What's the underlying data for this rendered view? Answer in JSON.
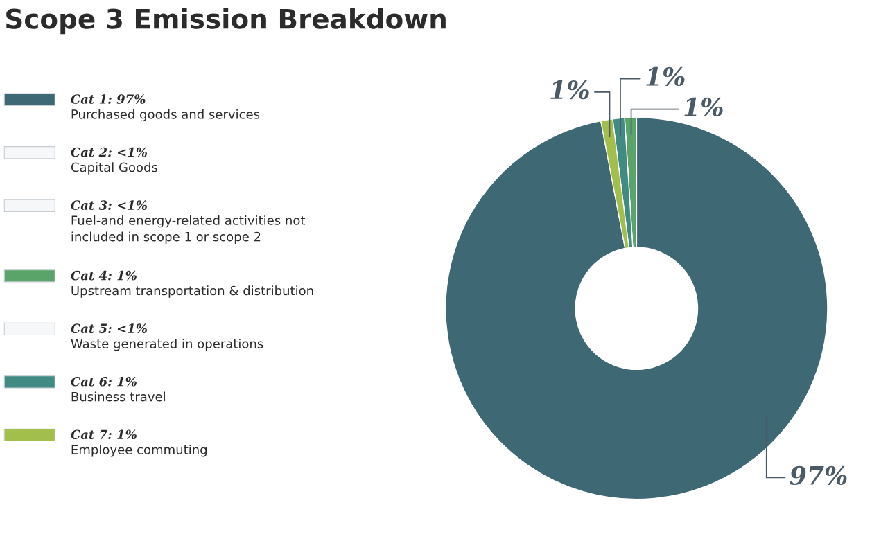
{
  "chart_data": {
    "type": "donut",
    "title": "Scope 3 Emission Breakdown",
    "categories": [
      "Cat 1: 97%\nPurchased goods and services",
      "Cat 2: <1%\nCapital Goods",
      "Cat 3: <1%\nFuel-and energy-related activities not\nincluded in scope 1 or scope 2",
      "Cat 4: 1%\nUpstream transportation & distribution",
      "Cat 5: <1%\nWaste generated in operations",
      "Cat 6: 1%\nBusiness travel",
      "Cat 7: 1%\nEmployee commuting"
    ],
    "values": [
      97,
      0,
      0,
      1,
      0,
      1,
      1
    ],
    "colors": [
      "#3f6875",
      "#f5f7f9",
      "#f5f7f9",
      "#5aa46a",
      "#f5f7f9",
      "#428a84",
      "#a2bf4c"
    ],
    "value_labels": [
      "97%",
      null,
      null,
      "1%",
      null,
      "1%",
      "1%"
    ],
    "legend": "left"
  }
}
